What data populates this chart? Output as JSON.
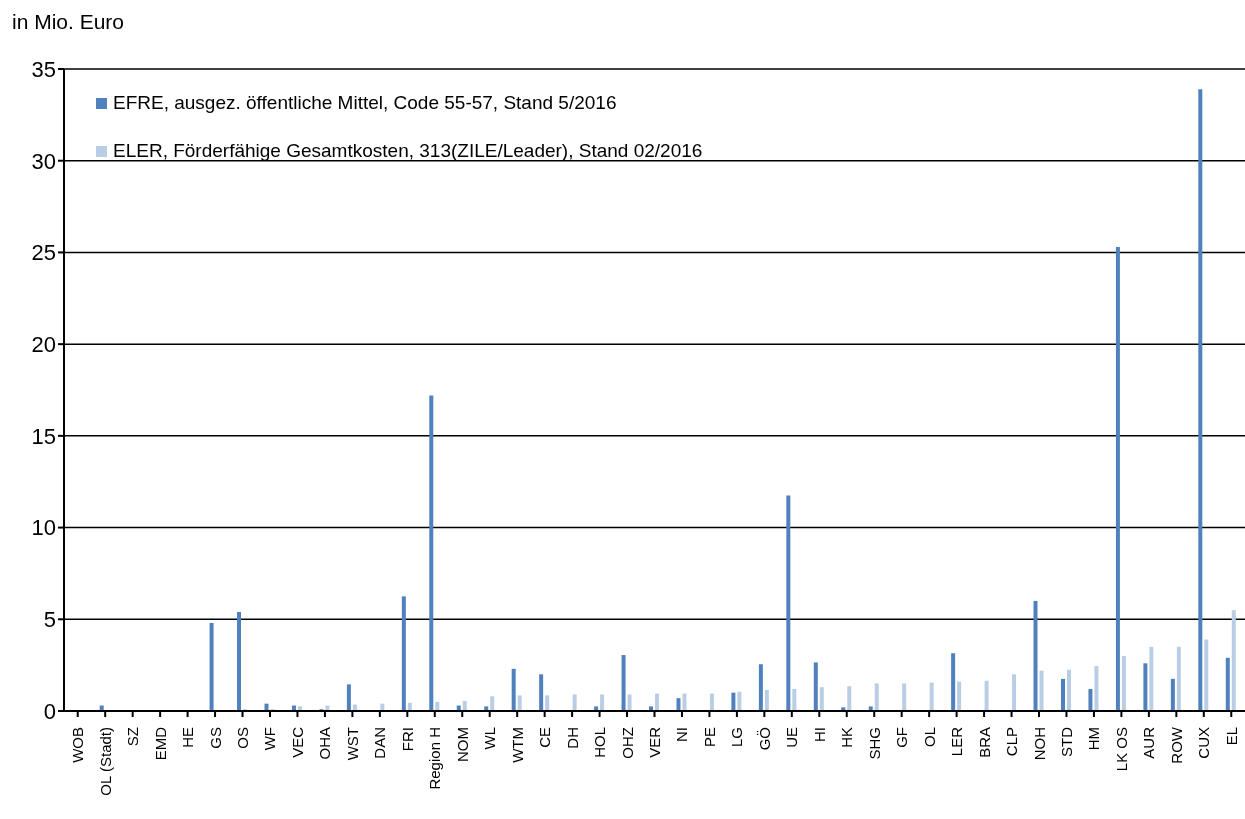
{
  "chart_data": {
    "type": "bar",
    "annotations": [
      "in Mio. Euro"
    ],
    "categories": [
      "WOB",
      "OL (Stadt)",
      "SZ",
      "EMD",
      "HE",
      "GS",
      "OS",
      "WF",
      "VEC",
      "OHA",
      "WST",
      "DAN",
      "FRI",
      "Region H",
      "NOM",
      "WL",
      "WTM",
      "CE",
      "DH",
      "HOL",
      "OHZ",
      "VER",
      "NI",
      "PE",
      "LG",
      "GÖ",
      "UE",
      "HI",
      "HK",
      "SHG",
      "GF",
      "OL",
      "LER",
      "BRA",
      "CLP",
      "NOH",
      "STD",
      "HM",
      "LK OS",
      "AUR",
      "ROW",
      "CUX",
      "EL"
    ],
    "series": [
      {
        "name": "EFRE, ausgez. öffentliche Mittel, Code 55-57, Stand 5/2016",
        "color": "#4f81bd",
        "values": [
          0,
          0.3,
          0,
          0,
          0,
          4.8,
          5.4,
          0.4,
          0.3,
          0.1,
          1.45,
          0,
          6.25,
          17.2,
          0.3,
          0.25,
          2.3,
          2.0,
          0,
          0.25,
          3.05,
          0.25,
          0.7,
          0,
          1.0,
          2.55,
          11.75,
          2.65,
          0.2,
          0.25,
          0,
          0,
          3.15,
          0,
          0,
          6.0,
          1.75,
          1.2,
          25.3,
          2.6,
          1.75,
          33.9,
          2.9
        ]
      },
      {
        "name": "ELER, Förderfähige Gesamtkosten, 313(ZILE/Leader), Stand 02/2016",
        "color": "#b9cde5",
        "values": [
          0,
          0,
          0,
          0,
          0,
          0,
          0.1,
          0.1,
          0.25,
          0.3,
          0.35,
          0.4,
          0.45,
          0.5,
          0.55,
          0.8,
          0.85,
          0.85,
          0.9,
          0.9,
          0.9,
          0.95,
          0.95,
          0.95,
          1.05,
          1.15,
          1.2,
          1.3,
          1.35,
          1.5,
          1.5,
          1.55,
          1.6,
          1.65,
          2.0,
          2.2,
          2.25,
          2.45,
          3.0,
          3.5,
          3.5,
          3.9,
          5.5
        ]
      }
    ],
    "ylim": [
      0,
      35
    ],
    "yticks": [
      0,
      5,
      10,
      15,
      20,
      25,
      30,
      35
    ],
    "grid": "y",
    "legend": "top left"
  }
}
